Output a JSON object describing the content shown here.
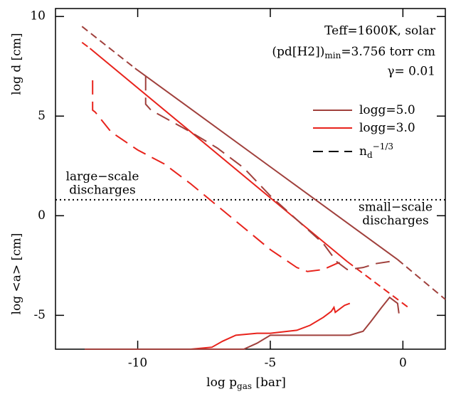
{
  "chart_data": {
    "type": "line",
    "xlim": [
      -13.1,
      1.6
    ],
    "ylim": [
      -6.7,
      10.4
    ],
    "xticks": [
      -10,
      -5,
      0
    ],
    "yticks": [
      -5,
      0,
      5,
      10
    ],
    "xlabel": [
      "log p",
      "gas",
      " [bar]"
    ],
    "ylabels": [
      "log d [cm]",
      "log <a> [cm]"
    ],
    "annotations": [
      "Teff=1600K, solar",
      "(pd[H2])",
      "min",
      "=3.756 torr cm",
      "γ= 0.01"
    ],
    "regions": [
      "large−scale",
      "discharges",
      "small−scale",
      "discharges"
    ],
    "threshold": {
      "value": 0.8,
      "dash": "2 4",
      "color": "#000000"
    },
    "legend": [
      {
        "label": [
          "logg=5.0"
        ],
        "color": "#a0403c",
        "dash": "none"
      },
      {
        "label": [
          "logg=3.0"
        ],
        "color": "#e8231c",
        "dash": "none"
      },
      {
        "label": [
          "n",
          "d",
          "−1/3"
        ],
        "color": "#000000",
        "dash": "14 8"
      }
    ],
    "series": [
      {
        "color": "#a0403c",
        "dash": "10 6",
        "x": [
          -12.1,
          -10.1
        ],
        "values": [
          9.5,
          7.4
        ]
      },
      {
        "color": "#a0403c",
        "dash": "none",
        "x": [
          -10.1,
          -0.2
        ],
        "values": [
          7.4,
          -2.2
        ]
      },
      {
        "color": "#a0403c",
        "dash": "10 6",
        "x": [
          -0.2,
          1.6
        ],
        "values": [
          -2.2,
          -4.2
        ]
      },
      {
        "color": "#e8231c",
        "dash": "10 6",
        "x": [
          -12.1,
          -11.8
        ],
        "values": [
          8.7,
          8.4
        ]
      },
      {
        "color": "#e8231c",
        "dash": "none",
        "x": [
          -11.8,
          -2.1
        ],
        "values": [
          8.4,
          -2.3
        ]
      },
      {
        "color": "#e8231c",
        "dash": "10 6",
        "x": [
          -2.1,
          0.2
        ],
        "values": [
          -2.3,
          -4.6
        ]
      },
      {
        "color": "#e8231c",
        "dash": "20 10",
        "x": [
          -11.7,
          -11.7,
          -11.6,
          -11,
          -10,
          -9,
          -8,
          -7,
          -6,
          -5,
          -4,
          -3.6,
          -3,
          -2.5,
          -2.2
        ],
        "values": [
          6.8,
          5.3,
          5.2,
          4.2,
          3.3,
          2.6,
          1.6,
          0.5,
          -0.6,
          -1.7,
          -2.6,
          -2.8,
          -2.7,
          -2.4,
          -2.3
        ]
      },
      {
        "color": "#a0403c",
        "dash": "20 10",
        "x": [
          -9.7,
          -9.7,
          -9.5,
          -8,
          -7,
          -6,
          -5,
          -4,
          -3,
          -2.5,
          -2.1,
          -1.5,
          -1,
          -0.5
        ],
        "values": [
          7.0,
          5.6,
          5.3,
          4.2,
          3.4,
          2.4,
          1.0,
          -0.2,
          -1.4,
          -2.3,
          -2.7,
          -2.6,
          -2.4,
          -2.3
        ]
      },
      {
        "color": "#e8231c",
        "dash": "none",
        "x": [
          -11.8,
          -8,
          -7.2,
          -6.8,
          -6.3,
          -5.5,
          -5,
          -4,
          -3.5,
          -3,
          -2.7,
          -2.6,
          -2.55,
          -2.4,
          -2.2,
          -2
        ],
        "values": [
          -6.7,
          -6.7,
          -6.6,
          -6.3,
          -6.0,
          -5.9,
          -5.9,
          -5.75,
          -5.5,
          -5.1,
          -4.8,
          -4.6,
          -4.85,
          -4.7,
          -4.5,
          -4.4
        ]
      },
      {
        "color": "#a0403c",
        "dash": "none",
        "x": [
          -12,
          -6,
          -5.5,
          -5,
          -4.5,
          -2,
          -1.5,
          -1.2,
          -0.8,
          -0.5,
          -0.3,
          -0.2,
          -0.15
        ],
        "values": [
          -6.7,
          -6.7,
          -6.4,
          -6.0,
          -6.0,
          -6.0,
          -5.8,
          -5.3,
          -4.6,
          -4.1,
          -4.3,
          -4.4,
          -4.9
        ]
      }
    ]
  }
}
